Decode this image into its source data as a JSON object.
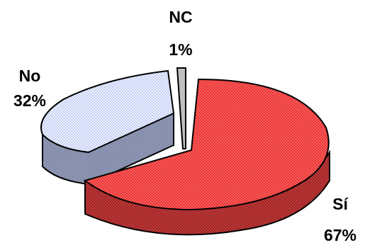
{
  "chart_data": {
    "type": "pie",
    "style": "3d-exploded",
    "title": "",
    "slices": [
      {
        "category": "Sí",
        "label": "Sí",
        "percent_label": "67%",
        "value": 67,
        "color": "#ee3333",
        "side_color": "#a82020",
        "pattern": "dotted"
      },
      {
        "category": "NC",
        "label": "NC",
        "percent_label": "1%",
        "value": 1,
        "color": "#c0c0c0",
        "side_color": "#8a8a8a",
        "pattern": "none"
      },
      {
        "category": "No",
        "label": "No",
        "percent_label": "32%",
        "value": 32,
        "color": "#dde6ff",
        "side_color": "#7f89a8",
        "pattern": "dotted"
      }
    ],
    "legend": "none"
  }
}
